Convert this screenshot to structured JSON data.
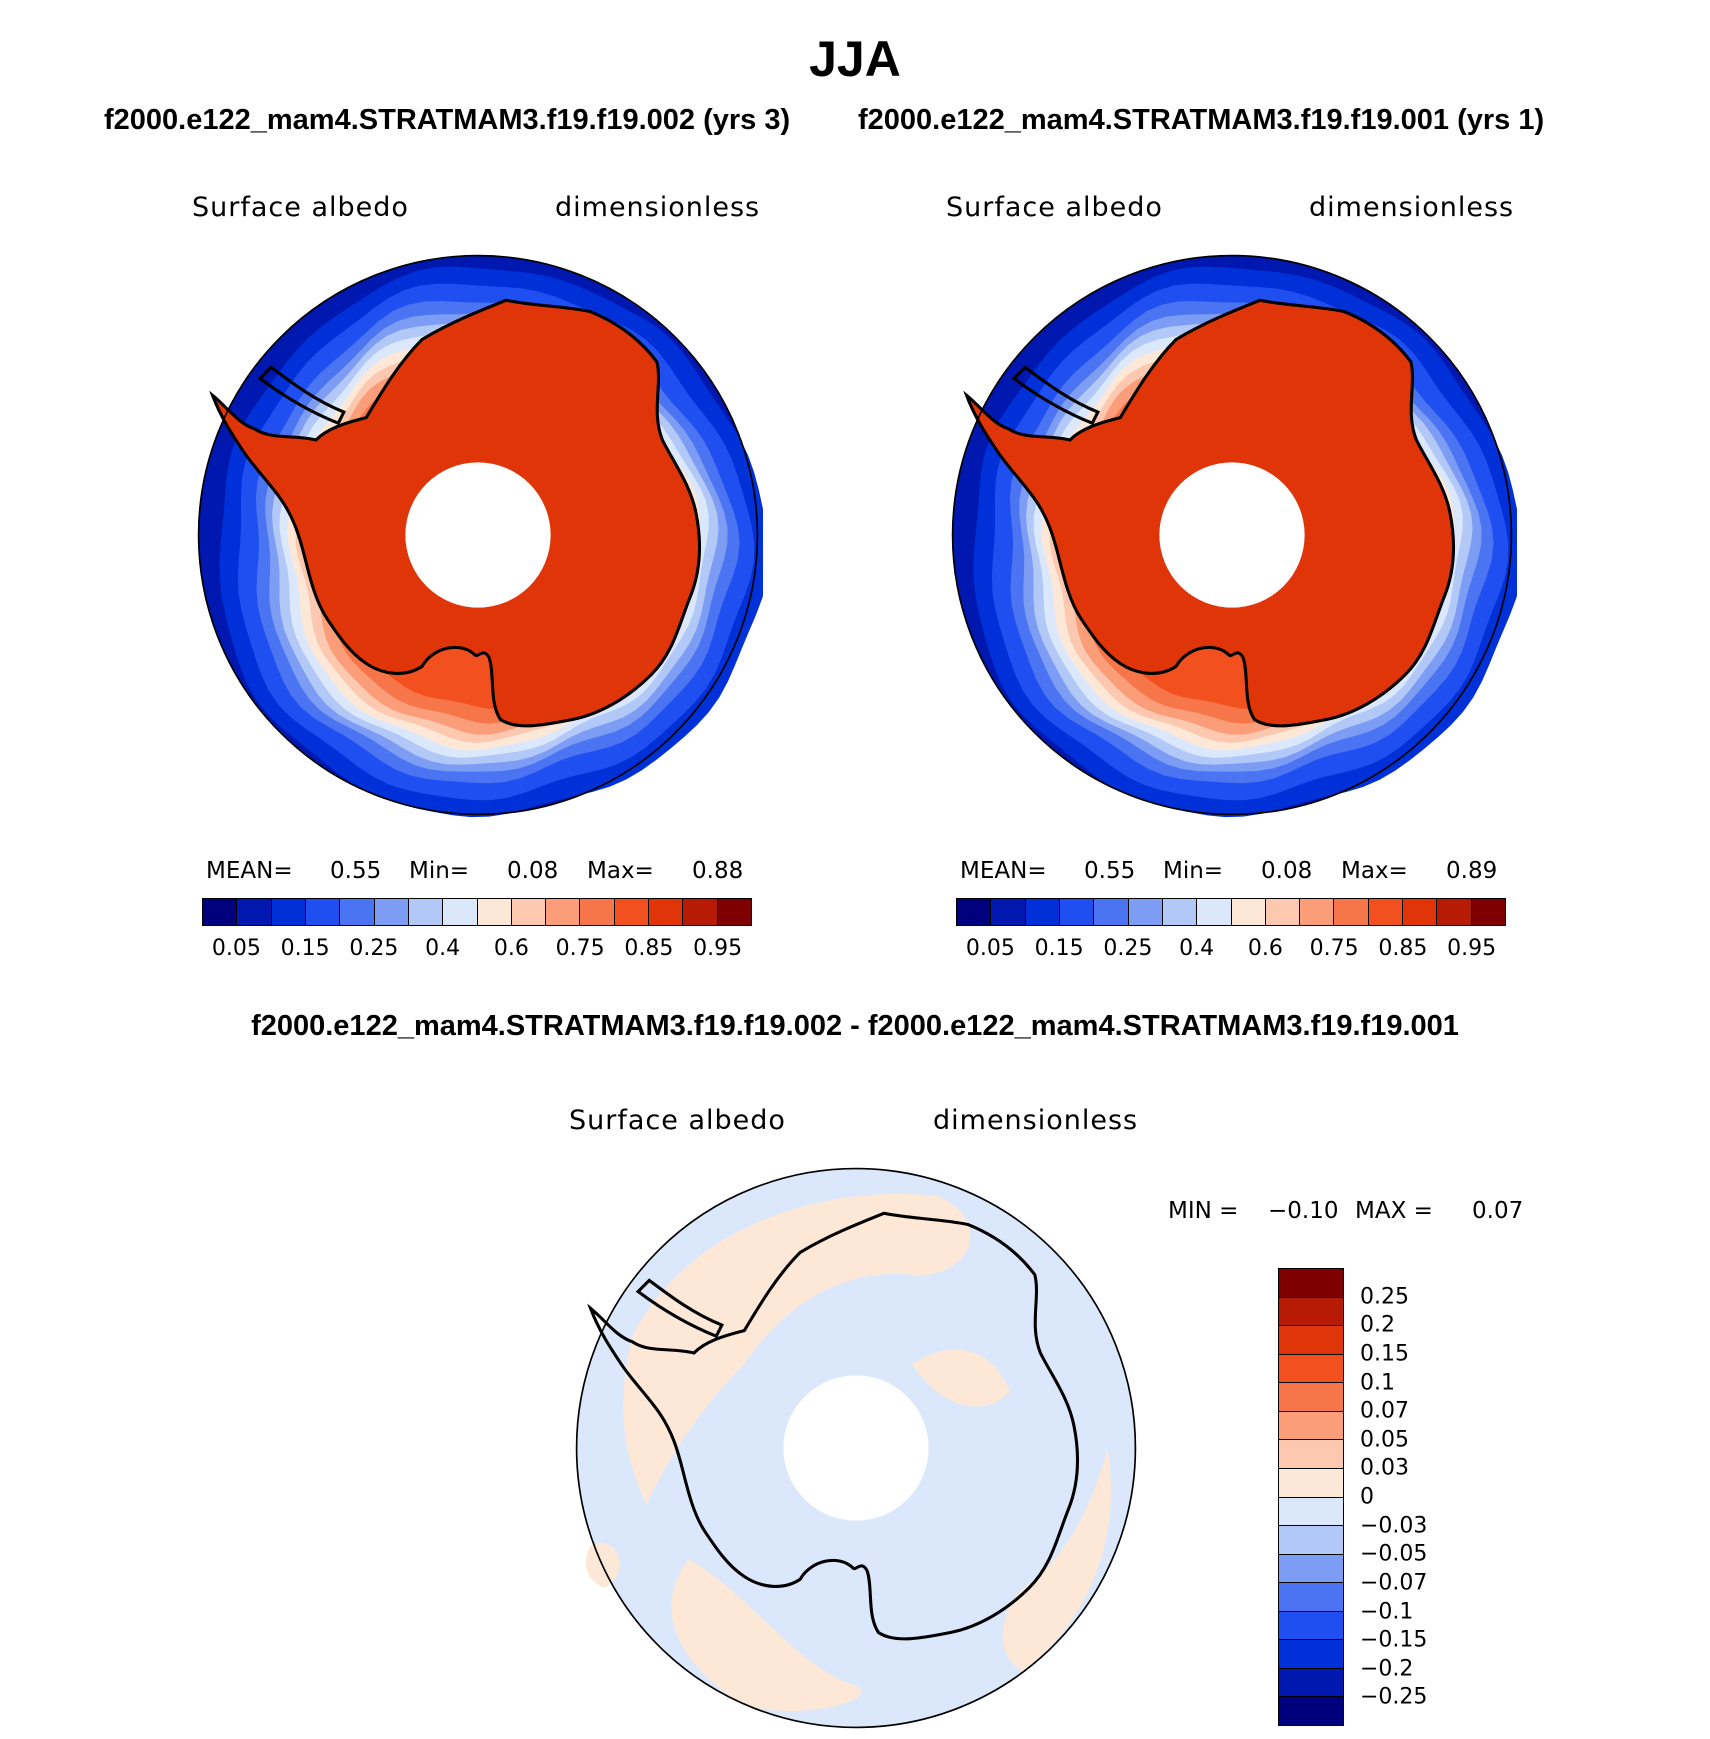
{
  "title": "JJA",
  "case_titles": [
    "f2000.e122_mam4.STRATMAM3.f19.f19.002 (yrs 3)",
    "f2000.e122_mam4.STRATMAM3.f19.f19.001 (yrs 1)"
  ],
  "diff_title": "f2000.e122_mam4.STRATMAM3.f19.f19.002 - f2000.e122_mam4.STRATMAM3.f19.f19.001",
  "colors": {
    "abs_levels": [
      "#00007f",
      "#0018b0",
      "#0030d8",
      "#1f4ff0",
      "#4a74f2",
      "#7d9cf4",
      "#b2c8f7",
      "#dbe8fb",
      "#fde8d8",
      "#fcc8b0",
      "#fa9d78",
      "#f6764a",
      "#f2501f",
      "#e03508",
      "#b81b05",
      "#7f0000"
    ],
    "diff_levels": [
      "#7f0000",
      "#b81b05",
      "#e03508",
      "#f2501f",
      "#f6764a",
      "#fa9d78",
      "#fcc8b0",
      "#fde8d8",
      "#dbe8fb",
      "#b2c8f7",
      "#7d9cf4",
      "#4a74f2",
      "#1f4ff0",
      "#0030d8",
      "#0018b0",
      "#00007f"
    ],
    "coast": "#000000",
    "pole_mask": "#ffffff"
  },
  "panels": [
    {
      "variable": "Surface albedo",
      "units": "dimensionless",
      "mean_label": "MEAN=",
      "mean": "0.55",
      "min_label": "Min=",
      "min": "0.08",
      "max_label": "Max=",
      "max": "0.88",
      "ticks": [
        "0.05",
        "0.15",
        "0.25",
        "0.4",
        "0.6",
        "0.75",
        "0.85",
        "0.95"
      ]
    },
    {
      "variable": "Surface albedo",
      "units": "dimensionless",
      "mean_label": "MEAN=",
      "mean": "0.55",
      "min_label": "Min=",
      "min": "0.08",
      "max_label": "Max=",
      "max": "0.89",
      "ticks": [
        "0.05",
        "0.15",
        "0.25",
        "0.4",
        "0.6",
        "0.75",
        "0.85",
        "0.95"
      ]
    }
  ],
  "diff_panel": {
    "variable": "Surface albedo",
    "units": "dimensionless",
    "min_label": "MIN =",
    "min": "−0.10",
    "max_label": "MAX =",
    "max": "0.07",
    "ticks": [
      "0.25",
      "0.2",
      "0.15",
      "0.1",
      "0.07",
      "0.05",
      "0.03",
      "0",
      "−0.03",
      "−0.05",
      "−0.07",
      "−0.1",
      "−0.15",
      "−0.2",
      "−0.25"
    ]
  },
  "chart_data": [
    {
      "type": "heatmap",
      "projection": "south polar stereographic",
      "title": "f2000.e122_mam4.STRATMAM3.f19.f19.002 (yrs 3)",
      "variable": "Surface albedo",
      "units": "dimensionless",
      "contour_levels": [
        0.05,
        0.1,
        0.15,
        0.2,
        0.25,
        0.3,
        0.4,
        0.5,
        0.6,
        0.7,
        0.75,
        0.8,
        0.85,
        0.9,
        0.95
      ],
      "stats": {
        "mean": 0.55,
        "min": 0.08,
        "max": 0.88
      }
    },
    {
      "type": "heatmap",
      "projection": "south polar stereographic",
      "title": "f2000.e122_mam4.STRATMAM3.f19.f19.001 (yrs 1)",
      "variable": "Surface albedo",
      "units": "dimensionless",
      "contour_levels": [
        0.05,
        0.1,
        0.15,
        0.2,
        0.25,
        0.3,
        0.4,
        0.5,
        0.6,
        0.7,
        0.75,
        0.8,
        0.85,
        0.9,
        0.95
      ],
      "stats": {
        "mean": 0.55,
        "min": 0.08,
        "max": 0.89
      }
    },
    {
      "type": "heatmap",
      "projection": "south polar stereographic",
      "title": "f2000.e122_mam4.STRATMAM3.f19.f19.002 - f2000.e122_mam4.STRATMAM3.f19.f19.001",
      "variable": "Surface albedo",
      "units": "dimensionless",
      "contour_levels": [
        -0.25,
        -0.2,
        -0.15,
        -0.1,
        -0.07,
        -0.05,
        -0.03,
        0,
        0.03,
        0.05,
        0.07,
        0.1,
        0.15,
        0.2,
        0.25
      ],
      "stats": {
        "min": -0.1,
        "max": 0.07
      }
    }
  ]
}
